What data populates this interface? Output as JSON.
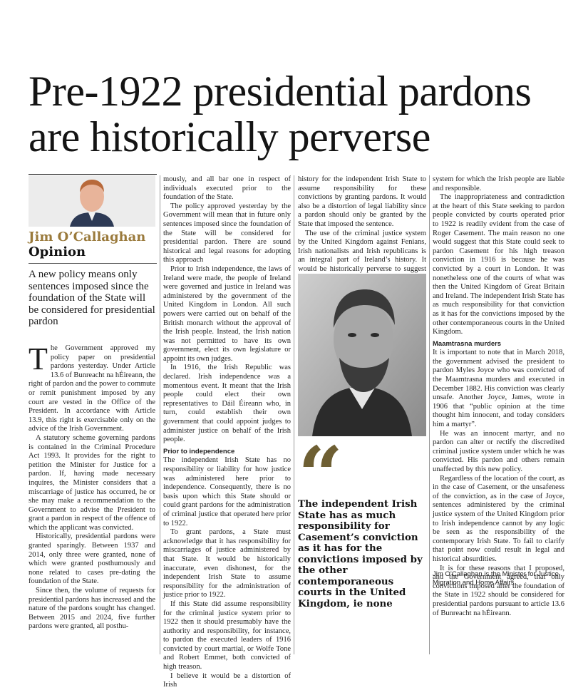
{
  "headline": "Pre-1922 presidential pardons are historically perverse",
  "author": {
    "name": "Jim O’Callaghan",
    "section": "Opinion"
  },
  "standfirst": "A new policy means only sentences imposed since the foundation of the State will be considered for presidential pardon",
  "colors": {
    "author_name": "#9a7a3c",
    "quote_mark": "#6e5f33"
  },
  "icons": {
    "quote_mark": "66-quote-mark",
    "author_photo": "author-portrait",
    "main_photo": "roger-casement-portrait"
  },
  "col1": {
    "dropcap": "T",
    "p1": "he Government approved my policy paper on presidential pardons yesterday. Under Article 13.6 of Bunreacht na hÉireann, the right of pardon and the power to commute or remit punishment imposed by any court are vested in the Office of the President. In accordance with Article 13.9, this right is exercisable only on the advice of the Irish Government.",
    "p2": "A statutory scheme governing pardons is contained in the Criminal Procedure Act 1993. It provides for the right to petition the Minister for Justice for a pardon. If, having made necessary inquires, the Minister considers that a miscarriage of justice has occurred, he or she may make a recommendation to the Government to advise the President to grant a pardon in respect of the offence of which the applicant was convicted.",
    "p3": "Historically, presidential pardons were granted sparingly. Between 1937 and 2014, only three were granted, none of which were granted posthumously and none related to cases pre-dating the foundation of the State.",
    "p4": "Since then, the volume of requests for presidential pardons has increased and the nature of the pardons sought has changed. Between 2015 and 2024, five further pardons were granted, all posthu-"
  },
  "col2": {
    "p1": "mously, and all bar one in respect of individuals executed prior to the foundation of the State.",
    "p2": "The policy approved yesterday by the Government will mean that in future only sentences imposed since the foundation of the State will be considered for presidential pardon. There are sound historical and legal reasons for adopting this approach",
    "p3": "Prior to Irish independence, the laws of Ireland were made, the people of Ireland were governed and justice in Ireland was administered by the government of the United Kingdom in London. All such powers were carried out on behalf of the British monarch without the approval of the Irish people. Instead, the Irish nation was not permitted to have its own government, elect its own legislature or appoint its own judges.",
    "p4": "In 1916, the Irish Republic was declared. Irish independence was a momentous event. It meant that the Irish people could elect their own representatives to Dáil Éireann who, in turn, could establish their own government that could appoint judges to administer justice on behalf of the Irish people.",
    "subhead": "Prior to independence",
    "p5": "The independent Irish State has no responsibility or liability for how justice was administered here prior to independence. Consequently, there is no basis upon which this State should or could grant pardons for the administration of criminal justice that operated here prior to 1922.",
    "p6": "To grant pardons, a State must acknowledge that it has responsibility for miscarriages of justice administered by that State. It would be historically inaccurate, even dishonest, for the independent Irish State to assume responsibility for the administration of justice prior to 1922.",
    "p7": "If this State did assume responsibility for the criminal justice system prior to 1922 then it should presumably have the authority and responsibility, for instance, to pardon the executed leaders of 1916 convicted by court martial, or Wolfe Tone and Robert Emmet, both convicted of high treason.",
    "p8": "I believe it would be a distortion of Irish"
  },
  "col3": {
    "p1": "history for the independent Irish State to assume responsibility for these convictions by granting pardons. It would also be a distortion of legal liability since a pardon should only be granted by the State that imposed the sentence.",
    "p2": "The use of the criminal justice system by the United Kingdom against Fenians, Irish nationalists and Irish republicans is an integral part of Ireland’s history. It would be historically perverse to suggest that, in fact, this was a criminal justice"
  },
  "pullquote": "The independent Irish State has as much responsibility for Casement’s conviction as it has for the convictions imposed by the other contemporaneous courts in the United Kingdom, ie none",
  "col4": {
    "p1": "system for which the Irish people are liable and responsible.",
    "p2": "The inappropriateness and contradiction at the heart of this State seeking to pardon people convicted by courts operated prior to 1922 is readily evident from the case of Roger Casement. The main reason no one would suggest that this State could seek to pardon Casement for his high treason conviction in 1916 is because he was convicted by a court in London. It was nonetheless one of the courts of what was then the United Kingdom of Great Britain and Ireland. The independent Irish State has as much responsibility for that conviction as it has for the convictions imposed by the other contemporaneous courts in the United Kingdom.",
    "subhead": "Maamtrasna murders",
    "p3": "It is important to note that in March 2018, the government advised the president to pardon Myles Joyce who was convicted of the Maamtrasna murders and executed in December 1882. His conviction was clearly unsafe. Another Joyce, James, wrote in 1906 that “public opinion at the time thought him innocent, and today considers him a martyr”.",
    "p4": "He was an innocent martyr, and no pardon can alter or rectify the discredited criminal justice system under which he was convicted. His pardon and others remain unaffected by this new policy.",
    "p5": "Regardless of the location of the court, as in the case of Casement, or the unsafeness of the conviction, as in the case of Joyce, sentences administered by the criminal justice system of the United Kingdom prior to Irish independence cannot by any logic be seen as the responsibility of the contemporary Irish State. To fail to clarify that point now could result in legal and historical absurdities.",
    "p6": "It is for these reasons that I proposed, and the Government agreed, that only convictions imposed after the foundation of the State in 1922 should be considered for presidential pardons pursuant to article 13.6 of Bunreacht na hÉireann."
  },
  "byline_note": "Jim O’Callaghan is the Minister for Justice, Migration and Home Affairs"
}
